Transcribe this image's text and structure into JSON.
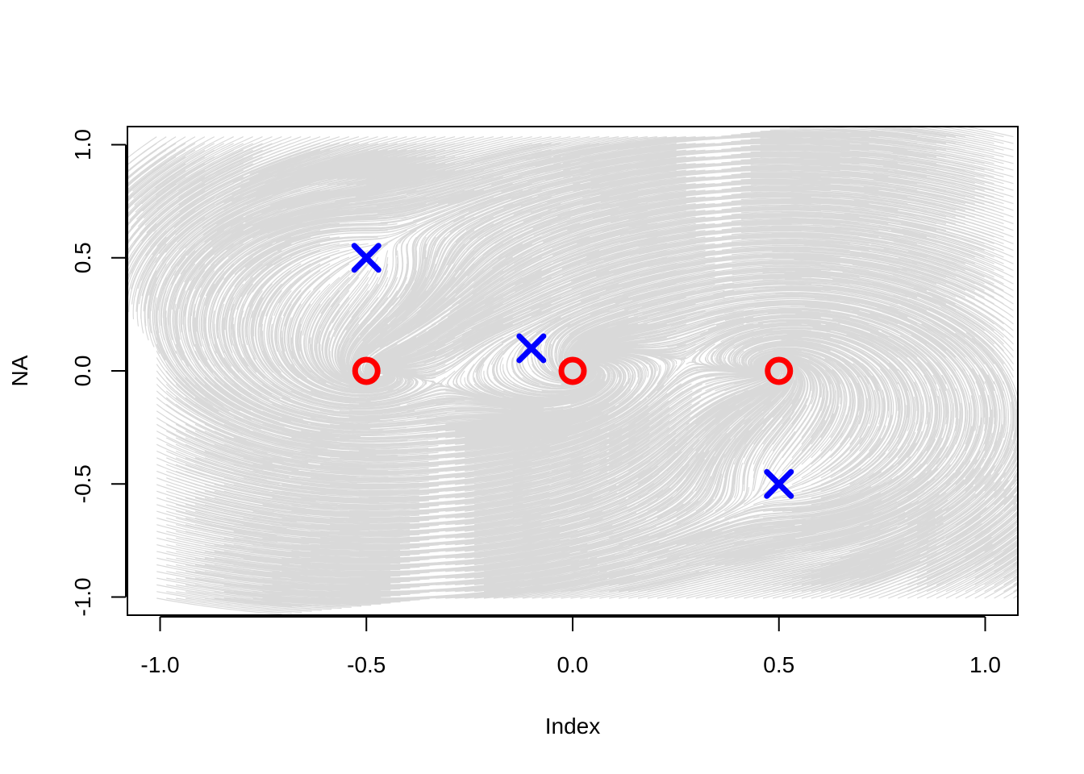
{
  "chart_data": {
    "type": "scatter",
    "title": "",
    "xlabel": "Index",
    "ylabel": "NA",
    "xlim": [
      -1.08,
      1.08
    ],
    "ylim": [
      -1.08,
      1.08
    ],
    "x_ticks": [
      -1.0,
      -0.5,
      0.0,
      0.5,
      1.0
    ],
    "x_tick_labels": [
      "-1.0",
      "-0.5",
      "0.0",
      "0.5",
      "1.0"
    ],
    "y_ticks": [
      -1.0,
      -0.5,
      0.0,
      0.5,
      1.0
    ],
    "y_tick_labels": [
      "-1.0",
      "-0.5",
      "0.0",
      "0.5",
      "1.0"
    ],
    "grid": false,
    "legend": "none",
    "background_field": {
      "description_type": "particle trajectories (flow field)",
      "color": "#000000",
      "alpha": 0.05
    },
    "series": [
      {
        "marker": "o",
        "color": "#ff0000",
        "points": [
          [
            -0.5,
            0.0
          ],
          [
            0.0,
            0.0
          ],
          [
            0.5,
            0.0
          ]
        ]
      },
      {
        "marker": "x",
        "color": "#0000ff",
        "points": [
          [
            -0.5,
            0.5
          ],
          [
            -0.1,
            0.1
          ],
          [
            0.5,
            -0.5
          ]
        ]
      }
    ]
  }
}
